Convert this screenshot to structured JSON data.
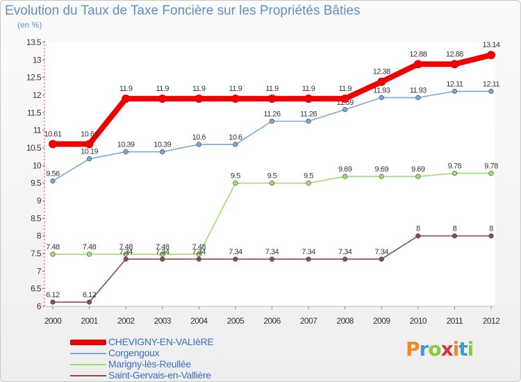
{
  "header": {
    "title": "Evolution du Taux de Taxe Foncière sur les Propriétés Bâties",
    "unit": "(en %)"
  },
  "logo": {
    "text": "Proxiti",
    "colors": [
      "#f08a24",
      "#3b9bd7",
      "#8cc63f",
      "#d7353d",
      "#f08a24",
      "#3b9bd7",
      "#8cc63f"
    ]
  },
  "chart_data": {
    "type": "line",
    "title": "Evolution du Taux de Taxe Foncière sur les Propriétés Bâties",
    "ylabel": "(en %)",
    "xlabel": "",
    "x": [
      "2000",
      "2001",
      "2002",
      "2003",
      "2004",
      "2005",
      "2006",
      "2007",
      "2008",
      "2009",
      "2010",
      "2011",
      "2012"
    ],
    "ylim": [
      6,
      13.5
    ],
    "yticks": [
      "6",
      "6.5",
      "7",
      "7.5",
      "8",
      "8.5",
      "9",
      "9.5",
      "10",
      "10.5",
      "11",
      "11.5",
      "12",
      "12.5",
      "13",
      "13.5"
    ],
    "legend_position": "bottom-left",
    "series": [
      {
        "name": "CHEVIGNY-EN-VALIèRE",
        "color": "#ee0000",
        "values": [
          10.61,
          10.61,
          11.9,
          11.9,
          11.9,
          11.9,
          11.9,
          11.9,
          11.9,
          12.38,
          12.88,
          12.88,
          13.14
        ],
        "labels": [
          "10.61",
          "10.61",
          "11.9",
          "11.9",
          "11.9",
          "11.9",
          "11.9",
          "11.9",
          "11.9",
          "12.38",
          "12.88",
          "12.88",
          "13.14"
        ]
      },
      {
        "name": "Corgengoux",
        "color": "#7aa7d3",
        "values": [
          9.56,
          10.19,
          10.39,
          10.39,
          10.6,
          10.6,
          11.26,
          11.26,
          11.59,
          11.93,
          11.93,
          12.11,
          12.11
        ],
        "labels": [
          "9.56",
          "10.19",
          "10.39",
          "10.39",
          "10.6",
          "10.6",
          "11.26",
          "11.26",
          "11.59",
          "11.93",
          "11.93",
          "12.11",
          "12.11"
        ]
      },
      {
        "name": "Marigny-lès-Reullée",
        "color": "#9fe06a",
        "values": [
          7.48,
          7.48,
          7.48,
          7.48,
          7.48,
          9.5,
          9.5,
          9.5,
          9.69,
          9.69,
          9.69,
          9.78,
          9.78
        ],
        "labels": [
          "7.48",
          "7.48",
          "7.48",
          "7.48",
          "7.48",
          "9.5",
          "9.5",
          "9.5",
          "9.69",
          "9.69",
          "9.69",
          "9.78",
          "9.78"
        ]
      },
      {
        "name": "Saint-Gervais-en-Vallière",
        "color": "#8e4a4a",
        "values": [
          6.12,
          6.12,
          7.34,
          7.34,
          7.34,
          7.34,
          7.34,
          7.34,
          7.34,
          7.34,
          8,
          8,
          8
        ],
        "labels": [
          "6.12",
          "6.12",
          "7.34",
          "7.34",
          "7.34",
          "7.34",
          "7.34",
          "7.34",
          "7.34",
          "7.34",
          "8",
          "8",
          "8"
        ]
      }
    ]
  }
}
